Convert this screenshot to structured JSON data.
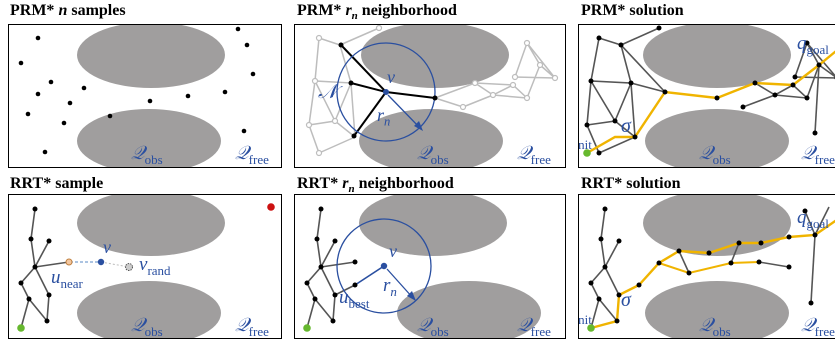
{
  "titles": {
    "prm_samples": {
      "prefix": "PRM* ",
      "var": "n",
      "suffix": " samples"
    },
    "prm_neighborhood": {
      "prefix": "PRM* ",
      "var": "r",
      "sub": "n",
      "suffix": " neighborhood"
    },
    "prm_solution": {
      "prefix": "PRM* solution"
    },
    "rrt_sample": {
      "prefix": "RRT* sample"
    },
    "rrt_neighborhood": {
      "prefix": "RRT* ",
      "var": "r",
      "sub": "n",
      "suffix": " neighborhood"
    },
    "rrt_solution": {
      "prefix": "RRT* solution"
    }
  },
  "labels": {
    "q_obs": {
      "main": "𝒬",
      "sub": "obs"
    },
    "q_free": {
      "main": "𝒬",
      "sub": "free"
    },
    "neighborhood_set": "𝒩",
    "v": "v",
    "r_n": {
      "main": "r",
      "sub": "n"
    },
    "q_init": {
      "main": "q",
      "sub": "init"
    },
    "q_goal": {
      "main": "q",
      "sub": "goal"
    },
    "sigma": "σ",
    "v_rand": {
      "main": "v",
      "sub": "rand"
    },
    "u_near": {
      "main": "u",
      "sub": "near"
    },
    "u_best": {
      "main": "u",
      "sub": "best"
    }
  },
  "colors": {
    "obstacle": "#a09e9e",
    "label_blue": "#2a4fa0",
    "solution_path": "#f0b400",
    "tree_edge": "#555555",
    "faded_edge": "#bdbdbd",
    "start_node": "#66b82e",
    "goal_node": "#cc1111"
  }
}
